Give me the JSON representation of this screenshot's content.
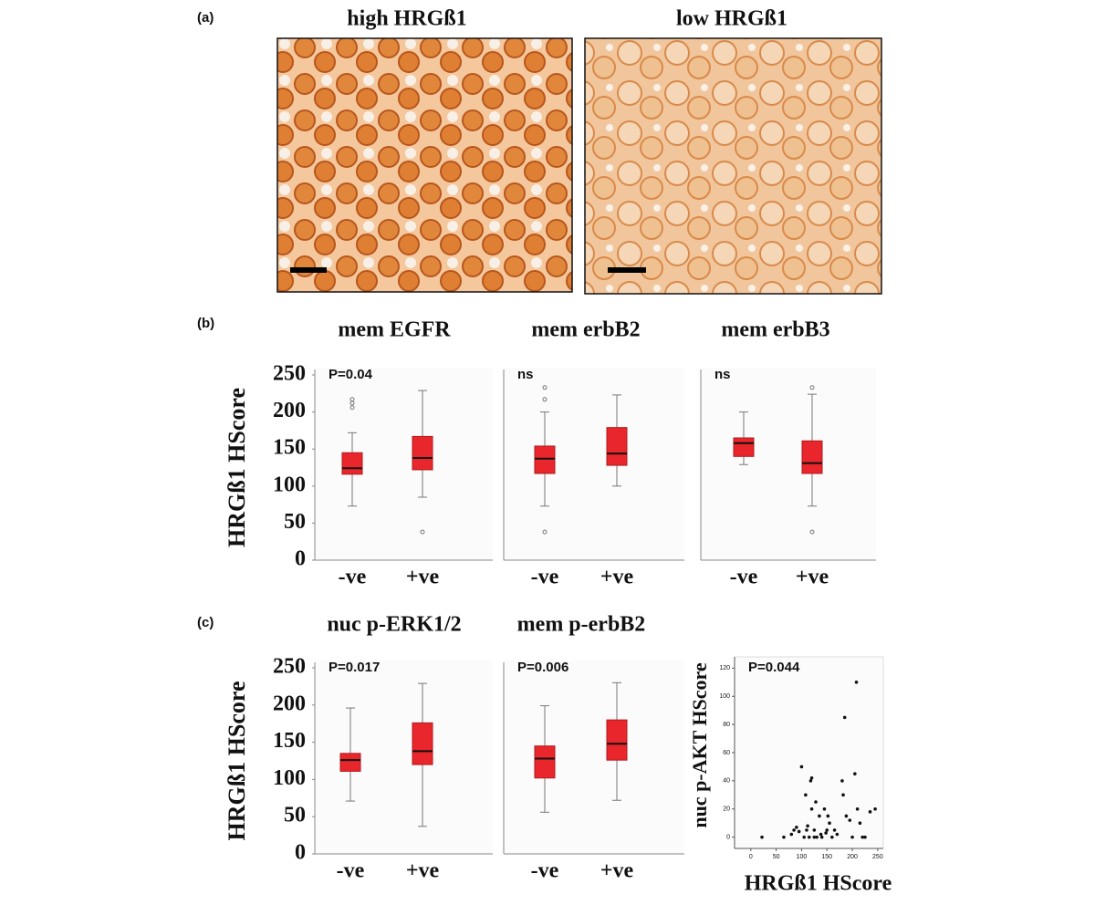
{
  "panel_labels": [
    "(a)",
    "(b)",
    "(c)"
  ],
  "micrographs": [
    {
      "title": "high HRGß1"
    },
    {
      "title": "low HRGß1"
    }
  ],
  "chart_data": [
    {
      "type": "box",
      "title": "mem EGFR",
      "y_label": "HRGß1 HScore",
      "annotation": "P=0.04",
      "color": "#e8262b",
      "categories": [
        "-ve",
        "+ve"
      ],
      "boxes": [
        {
          "whisker_low": 73,
          "q1": 116,
          "median": 124,
          "q3": 145,
          "whisker_high": 172,
          "outliers": [
            217,
            212,
            206
          ]
        },
        {
          "whisker_low": 85,
          "q1": 122,
          "median": 138,
          "q3": 167,
          "whisker_high": 229,
          "outliers": [
            38
          ]
        }
      ],
      "ylim": [
        0,
        250
      ],
      "yticks": [
        0,
        50,
        100,
        150,
        200,
        250
      ]
    },
    {
      "type": "box",
      "title": "mem erbB2",
      "annotation": "ns",
      "color": "#e8262b",
      "categories": [
        "-ve",
        "+ve"
      ],
      "boxes": [
        {
          "whisker_low": 73,
          "q1": 117,
          "median": 137,
          "q3": 154,
          "whisker_high": 200,
          "outliers": [
            233,
            217,
            38
          ]
        },
        {
          "whisker_low": 100,
          "q1": 128,
          "median": 144,
          "q3": 179,
          "whisker_high": 223,
          "outliers": []
        }
      ],
      "ylim": [
        0,
        250
      ]
    },
    {
      "type": "box",
      "title": "mem erbB3",
      "annotation": "ns",
      "color": "#e8262b",
      "categories": [
        "-ve",
        "+ve"
      ],
      "boxes": [
        {
          "whisker_low": 129,
          "q1": 140,
          "median": 158,
          "q3": 165,
          "whisker_high": 200,
          "outliers": []
        },
        {
          "whisker_low": 73,
          "q1": 117,
          "median": 131,
          "q3": 161,
          "whisker_high": 224,
          "outliers": [
            233,
            38
          ]
        }
      ],
      "ylim": [
        0,
        250
      ]
    },
    {
      "type": "box",
      "title": "nuc p-ERK1/2",
      "y_label": "HRGß1 HScore",
      "annotation": "P=0.017",
      "color": "#e8262b",
      "categories": [
        "-ve",
        "+ve"
      ],
      "boxes": [
        {
          "whisker_low": 71,
          "q1": 111,
          "median": 126,
          "q3": 135,
          "whisker_high": 196,
          "outliers": []
        },
        {
          "whisker_low": 37,
          "q1": 120,
          "median": 138,
          "q3": 176,
          "whisker_high": 229,
          "outliers": []
        }
      ],
      "ylim": [
        0,
        250
      ],
      "yticks": [
        0,
        50,
        100,
        150,
        200,
        250
      ]
    },
    {
      "type": "box",
      "title": "mem p-erbB2",
      "annotation": "P=0.006",
      "color": "#e8262b",
      "categories": [
        "-ve",
        "+ve"
      ],
      "boxes": [
        {
          "whisker_low": 56,
          "q1": 102,
          "median": 128,
          "q3": 145,
          "whisker_high": 199,
          "outliers": []
        },
        {
          "whisker_low": 72,
          "q1": 126,
          "median": 148,
          "q3": 180,
          "whisker_high": 230,
          "outliers": []
        }
      ],
      "ylim": [
        0,
        250
      ]
    },
    {
      "type": "scatter",
      "annotation": "P=0.044",
      "x_label": "HRGß1 HScore",
      "y_label": "nuc p-AKT HScore",
      "color": "#111111",
      "x": [
        22,
        65,
        80,
        85,
        90,
        95,
        100,
        105,
        108,
        110,
        112,
        115,
        118,
        120,
        120,
        125,
        125,
        128,
        130,
        135,
        138,
        140,
        145,
        148,
        150,
        152,
        155,
        160,
        165,
        170,
        180,
        182,
        185,
        188,
        195,
        200,
        205,
        208,
        210,
        215,
        220,
        225,
        235,
        245
      ],
      "y": [
        0,
        0,
        2,
        5,
        7,
        4,
        50,
        0,
        30,
        5,
        8,
        0,
        40,
        42,
        20,
        0,
        5,
        25,
        0,
        15,
        2,
        0,
        20,
        3,
        5,
        15,
        10,
        0,
        5,
        2,
        40,
        30,
        85,
        15,
        12,
        0,
        45,
        110,
        20,
        10,
        0,
        0,
        18,
        20
      ],
      "xlim": [
        -32,
        261
      ],
      "ylim": [
        -8,
        128
      ],
      "xticks": [
        0,
        50,
        100,
        150,
        200,
        250
      ],
      "yticks": [
        0,
        20,
        40,
        60,
        80,
        100,
        120
      ]
    }
  ]
}
